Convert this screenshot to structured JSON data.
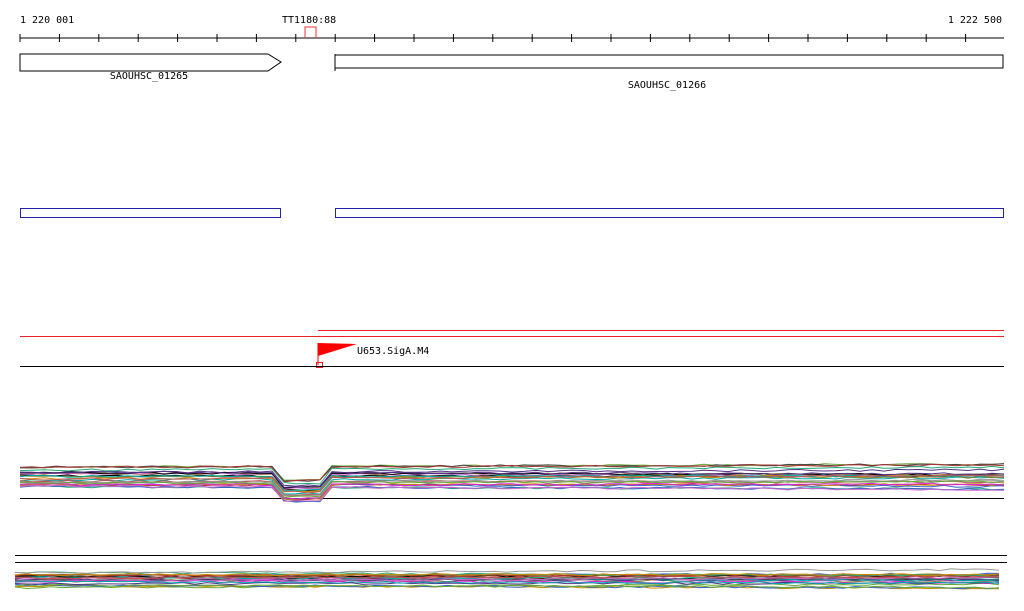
{
  "ruler": {
    "start": "1 220 001",
    "end": "1 222 500",
    "marker": "TT1180:88"
  },
  "genes": [
    {
      "label": "SAOUHSC_01265"
    },
    {
      "label": "SAOUHSC_01266"
    }
  ],
  "features": [
    {
      "label": "U653.SigA.M4"
    }
  ]
}
